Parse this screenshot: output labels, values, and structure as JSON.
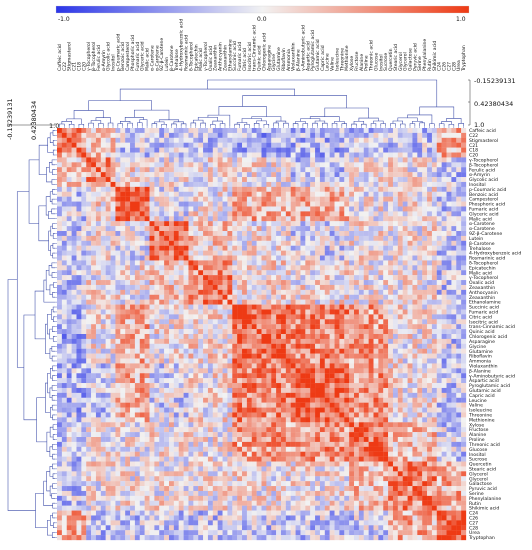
{
  "chart_data": {
    "type": "heatmap",
    "title": "",
    "colorbar": {
      "min_label": "-1.0",
      "mid_label": "0.0",
      "max_label": "1.0",
      "range": [
        -1.0,
        1.0
      ],
      "low_color": "#2b35e8",
      "mid_color": "#f2f2f2",
      "high_color": "#ee3a14"
    },
    "dendrogram_scale": {
      "top": [
        "-0.15239131",
        "0.42380434",
        "1.0"
      ],
      "left": [
        "-0.15239131",
        "0.42380434",
        "1.0"
      ]
    },
    "variables": [
      "Caffeic acid",
      "C22",
      "Stigmasterol",
      "C21",
      "C18",
      "C20",
      "γ-Tocopherol",
      "β-Tocopherol",
      "Ferulic acid",
      "α-Amyrin",
      "Glycolic acid",
      "Inositol",
      "p-Coumaric acid",
      "Benzoic acid",
      "Campesterol",
      "Phosphoric acid",
      "Fumaric acid",
      "Glyceric acid",
      "Malic acid",
      "α-Carotene",
      "α-Carotene",
      "9Z-β-Carotene",
      "Lutein",
      "β-Carotene",
      "Trehalose",
      "4-Hydroxybenzoic acid",
      "Rosmarinic acid",
      "δ-Tocopherol",
      "Epicatechin",
      "Malic acid",
      "γ-Tocopherol",
      "Oxalic acid",
      "Zeaxanthin",
      "Anthocyanin",
      "Zeaxanthin",
      "Ethanolamine",
      "Succinic acid",
      "Fumaric acid",
      "Citric acid",
      "Isocitric acid",
      "trans-Cinnamic acid",
      "Quinic acid",
      "Chlorogenic acid",
      "Asparagine",
      "Glycine",
      "Glutamine",
      "Riboflavin",
      "Ammonia",
      "Violaxanthin",
      "β-Alanine",
      "γ-Aminobutyric acid",
      "Aspartic acid",
      "Pyroglutamic acid",
      "Glutamic acid",
      "Capric acid",
      "Leucine",
      "Valine",
      "Isoleucine",
      "Threonine",
      "Methionine",
      "Xylose",
      "Fructose",
      "Alanine",
      "Proline",
      "Threonic acid",
      "Glucose",
      "Inositol",
      "Sucrose",
      "Quercetin",
      "Stearic acid",
      "Glycerol",
      "Glycerol",
      "Galactose",
      "Pyruvic acid",
      "Serine",
      "Phenylalanine",
      "Rutin",
      "Shikimic acid",
      "C24",
      "C26",
      "C27",
      "C28",
      "Urea",
      "Tryptophan"
    ]
  }
}
